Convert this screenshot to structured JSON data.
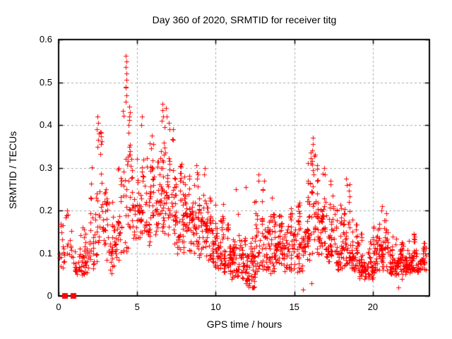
{
  "figure": {
    "title": "Day 360 of 2020, SRMTID for receiver titg",
    "x_axis_label": "GPS time / hours",
    "y_axis_label": "SRMTID / TECUs"
  },
  "colors": {
    "marker": "#ff0000",
    "grid": "#a8a8a8",
    "frame": "#000000",
    "text": "#000000",
    "background": "#ffffff"
  },
  "chart_data": {
    "type": "scatter",
    "title": "Day 360 of 2020, SRMTID for receiver titg",
    "xlabel": "GPS time / hours",
    "ylabel": "SRMTID / TECUs",
    "marker": "plus",
    "marker_color": "#ff0000",
    "grid": "dashed",
    "legend": "none",
    "xlim": [
      0,
      23.6
    ],
    "ylim": [
      0,
      0.6
    ],
    "xticks": [
      0,
      5,
      10,
      15,
      20
    ],
    "xtick_labels": [
      "0",
      "5",
      "10",
      "15",
      "20"
    ],
    "yticks": [
      0,
      0.1,
      0.2,
      0.3,
      0.4,
      0.5,
      0.6
    ],
    "ytick_labels": [
      "0",
      "0.1",
      "0.2",
      "0.3",
      "0.4",
      "0.5",
      "0.6"
    ],
    "seed": 20201225,
    "density_bins": [
      [
        0.0,
        0.5,
        0.05,
        0.2,
        18
      ],
      [
        0.5,
        1.0,
        0.06,
        0.2,
        12
      ],
      [
        1.0,
        1.5,
        0.05,
        0.15,
        26
      ],
      [
        1.5,
        2.0,
        0.05,
        0.16,
        34
      ],
      [
        2.0,
        2.5,
        0.06,
        0.35,
        30
      ],
      [
        2.5,
        3.0,
        0.1,
        0.42,
        34
      ],
      [
        3.0,
        3.5,
        0.05,
        0.27,
        30
      ],
      [
        3.5,
        4.0,
        0.08,
        0.31,
        32
      ],
      [
        4.0,
        4.5,
        0.1,
        0.53,
        36
      ],
      [
        4.5,
        5.0,
        0.13,
        0.45,
        36
      ],
      [
        5.0,
        5.5,
        0.13,
        0.36,
        36
      ],
      [
        5.5,
        6.0,
        0.12,
        0.4,
        38
      ],
      [
        6.0,
        6.5,
        0.14,
        0.38,
        38
      ],
      [
        6.5,
        7.0,
        0.14,
        0.45,
        40
      ],
      [
        7.0,
        7.5,
        0.12,
        0.4,
        40
      ],
      [
        7.5,
        8.0,
        0.1,
        0.33,
        38
      ],
      [
        8.0,
        8.5,
        0.1,
        0.31,
        40
      ],
      [
        8.5,
        9.0,
        0.09,
        0.3,
        40
      ],
      [
        9.0,
        9.5,
        0.09,
        0.28,
        40
      ],
      [
        9.5,
        10.0,
        0.07,
        0.25,
        40
      ],
      [
        10.0,
        10.5,
        0.06,
        0.22,
        42
      ],
      [
        10.5,
        11.0,
        0.05,
        0.19,
        42
      ],
      [
        11.0,
        11.5,
        0.04,
        0.2,
        42
      ],
      [
        11.5,
        12.0,
        0.03,
        0.15,
        40
      ],
      [
        12.0,
        12.5,
        0.02,
        0.14,
        40
      ],
      [
        12.5,
        13.0,
        0.04,
        0.26,
        40
      ],
      [
        13.0,
        13.5,
        0.05,
        0.22,
        40
      ],
      [
        13.5,
        14.0,
        0.05,
        0.24,
        40
      ],
      [
        14.0,
        14.5,
        0.06,
        0.2,
        40
      ],
      [
        14.5,
        15.0,
        0.06,
        0.22,
        40
      ],
      [
        15.0,
        15.5,
        0.04,
        0.24,
        40
      ],
      [
        15.5,
        16.0,
        0.08,
        0.32,
        40
      ],
      [
        16.0,
        16.5,
        0.09,
        0.35,
        40
      ],
      [
        16.5,
        17.0,
        0.09,
        0.3,
        40
      ],
      [
        17.0,
        17.5,
        0.08,
        0.28,
        40
      ],
      [
        17.5,
        18.0,
        0.06,
        0.22,
        40
      ],
      [
        18.0,
        18.5,
        0.06,
        0.26,
        40
      ],
      [
        18.5,
        19.0,
        0.05,
        0.18,
        40
      ],
      [
        19.0,
        19.5,
        0.04,
        0.15,
        40
      ],
      [
        19.5,
        20.0,
        0.04,
        0.14,
        40
      ],
      [
        20.0,
        20.5,
        0.05,
        0.18,
        42
      ],
      [
        20.5,
        21.0,
        0.06,
        0.2,
        42
      ],
      [
        21.0,
        21.5,
        0.05,
        0.15,
        40
      ],
      [
        21.5,
        22.0,
        0.04,
        0.14,
        40
      ],
      [
        22.0,
        22.5,
        0.05,
        0.14,
        40
      ],
      [
        22.5,
        23.0,
        0.05,
        0.15,
        40
      ],
      [
        23.0,
        23.4,
        0.06,
        0.13,
        30
      ]
    ],
    "peak_points": [
      [
        4.28,
        0.562
      ],
      [
        4.3,
        0.548
      ],
      [
        4.27,
        0.535
      ],
      [
        4.32,
        0.52
      ],
      [
        4.3,
        0.505
      ],
      [
        4.25,
        0.49
      ],
      [
        4.33,
        0.47
      ],
      [
        4.29,
        0.455
      ],
      [
        2.48,
        0.42
      ],
      [
        2.52,
        0.405
      ],
      [
        2.44,
        0.39
      ],
      [
        2.56,
        0.38
      ],
      [
        2.5,
        0.365
      ],
      [
        6.62,
        0.45
      ],
      [
        6.6,
        0.435
      ],
      [
        6.65,
        0.42
      ],
      [
        6.58,
        0.41
      ],
      [
        6.85,
        0.44
      ],
      [
        6.9,
        0.42
      ],
      [
        7.0,
        0.405
      ],
      [
        7.05,
        0.39
      ],
      [
        5.3,
        0.42
      ],
      [
        5.28,
        0.4
      ],
      [
        16.2,
        0.37
      ],
      [
        16.2,
        0.355
      ],
      [
        16.15,
        0.34
      ],
      [
        16.3,
        0.33
      ],
      [
        16.05,
        0.31
      ],
      [
        8.75,
        0.305
      ],
      [
        8.8,
        0.29
      ],
      [
        9.3,
        0.3
      ],
      [
        9.28,
        0.285
      ],
      [
        12.7,
        0.285
      ],
      [
        12.72,
        0.27
      ],
      [
        13.1,
        0.27
      ],
      [
        11.9,
        0.255
      ],
      [
        11.3,
        0.25
      ],
      [
        16.9,
        0.3
      ],
      [
        16.95,
        0.285
      ],
      [
        18.3,
        0.275
      ],
      [
        18.33,
        0.26
      ],
      [
        20.6,
        0.21
      ],
      [
        20.55,
        0.2
      ],
      [
        0.55,
        0.2
      ],
      [
        0.57,
        0.19
      ]
    ],
    "low_outliers": [
      [
        12.35,
        0.02
      ],
      [
        15.55,
        0.015
      ],
      [
        11.9,
        0.03
      ],
      [
        21.6,
        0.02
      ],
      [
        16.1,
        0.03
      ]
    ],
    "zero_value_segments": [
      [
        0.22,
        0.6
      ],
      [
        0.76,
        1.12
      ]
    ]
  }
}
